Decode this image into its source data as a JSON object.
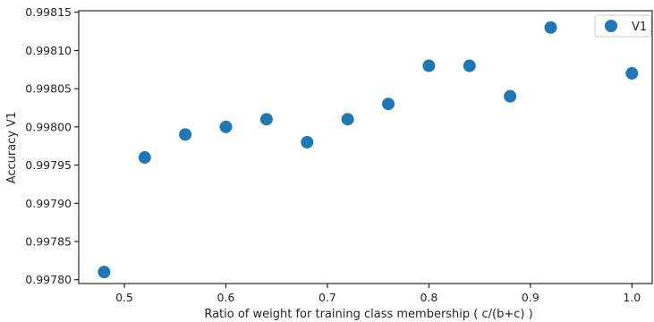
{
  "chart_data": {
    "type": "scatter",
    "title": "",
    "xlabel": "Ratio of weight for training class membership ( c/(b+c) )",
    "ylabel": "Accuracy V1",
    "xlim": [
      0.455,
      1.02
    ],
    "ylim": [
      0.997795,
      0.998152
    ],
    "xticks": [
      0.5,
      0.6,
      0.7,
      0.8,
      0.9,
      1.0
    ],
    "xtick_labels": [
      "0.5",
      "0.6",
      "0.7",
      "0.8",
      "0.9",
      "1.0"
    ],
    "yticks": [
      0.9978,
      0.99785,
      0.9979,
      0.99795,
      0.998,
      0.99805,
      0.9981,
      0.99815
    ],
    "ytick_labels": [
      "0.99780",
      "0.99785",
      "0.99790",
      "0.99795",
      "0.99800",
      "0.99805",
      "0.99810",
      "0.99815"
    ],
    "grid": false,
    "legend_position": "top-right",
    "series": [
      {
        "name": "V1",
        "color": "#1f77b4",
        "x": [
          0.48,
          0.52,
          0.56,
          0.6,
          0.64,
          0.68,
          0.72,
          0.76,
          0.8,
          0.84,
          0.88,
          0.92,
          1.0
        ],
        "y": [
          0.99781,
          0.99796,
          0.99799,
          0.998,
          0.99801,
          0.99798,
          0.99801,
          0.99803,
          0.99808,
          0.99808,
          0.99804,
          0.99813,
          0.99807
        ]
      }
    ]
  }
}
